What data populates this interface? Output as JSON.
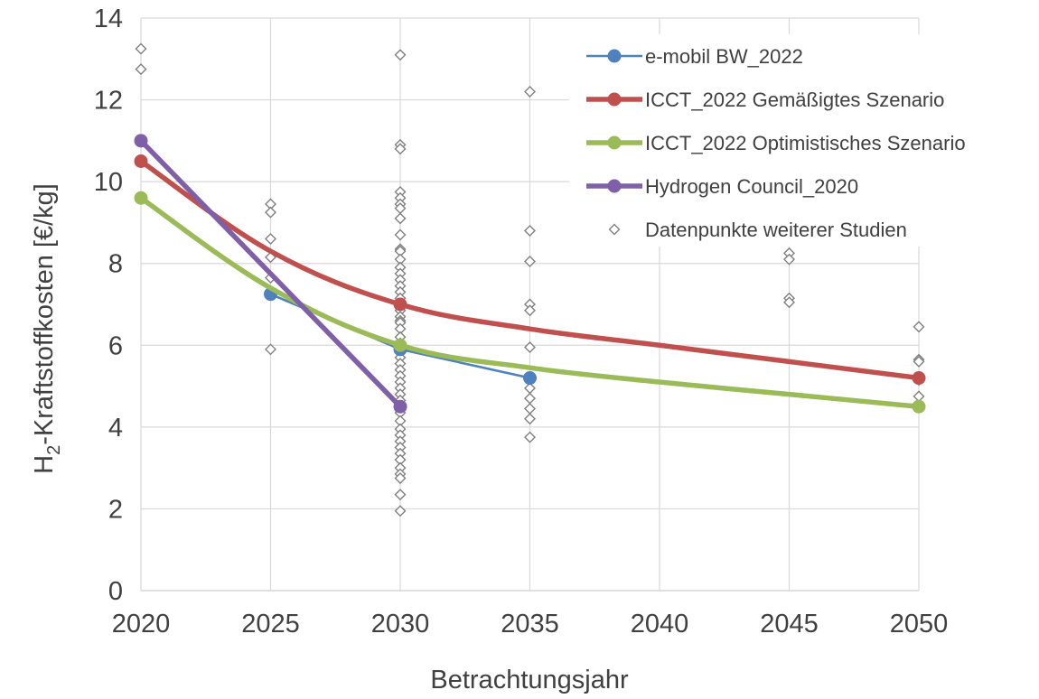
{
  "chart_data": {
    "type": "line",
    "title": "",
    "xlabel": "Betrachtungsjahr",
    "ylabel_prefix": "H",
    "ylabel_subscript": "2",
    "ylabel_rest": "-Kraftstoffkosten [€/kg]",
    "xlim": [
      2020,
      2050
    ],
    "ylim": [
      0,
      14
    ],
    "xticks": [
      "2020",
      "2025",
      "2030",
      "2035",
      "2040",
      "2045",
      "2050"
    ],
    "yticks": [
      "0",
      "2",
      "4",
      "6",
      "8",
      "10",
      "12",
      "14"
    ],
    "grid": "vertical and horizontal",
    "legend_position": "top-right",
    "series": [
      {
        "name": "e-mobil BW_2022",
        "color": "#4e81bd",
        "style": "line-with-markers",
        "points": [
          [
            2025,
            7.25
          ],
          [
            2030,
            5.9
          ],
          [
            2035,
            5.2
          ]
        ]
      },
      {
        "name": "ICCT_2022 Gemäßigtes Szenario",
        "color": "#c0504d",
        "style": "smooth-line",
        "points": [
          [
            2020,
            10.5
          ],
          [
            2025,
            8.3
          ],
          [
            2030,
            7.0
          ],
          [
            2035,
            6.4
          ],
          [
            2040,
            6.0
          ],
          [
            2045,
            5.6
          ],
          [
            2050,
            5.2
          ]
        ],
        "markers_at": [
          2020,
          2030,
          2050
        ]
      },
      {
        "name": "ICCT_2022 Optimistisches Szenario",
        "color": "#9bbb59",
        "style": "smooth-line",
        "points": [
          [
            2020,
            9.6
          ],
          [
            2025,
            7.4
          ],
          [
            2030,
            6.0
          ],
          [
            2035,
            5.45
          ],
          [
            2040,
            5.1
          ],
          [
            2045,
            4.8
          ],
          [
            2050,
            4.5
          ]
        ],
        "markers_at": [
          2020,
          2030,
          2050
        ]
      },
      {
        "name": "Hydrogen Council_2020",
        "color": "#7f5fa8",
        "style": "line-with-markers",
        "points": [
          [
            2020,
            11.0
          ],
          [
            2030,
            4.5
          ]
        ]
      },
      {
        "name": "Datenpunkte weiterer Studien",
        "color": "#7f7f7f",
        "style": "diamond-markers",
        "points": [
          [
            2020,
            13.25
          ],
          [
            2020,
            12.75
          ],
          [
            2020,
            11.0
          ],
          [
            2025,
            9.45
          ],
          [
            2025,
            9.25
          ],
          [
            2025,
            8.6
          ],
          [
            2025,
            8.15
          ],
          [
            2025,
            7.65
          ],
          [
            2025,
            5.9
          ],
          [
            2030,
            13.1
          ],
          [
            2030,
            10.9
          ],
          [
            2030,
            10.8
          ],
          [
            2030,
            9.75
          ],
          [
            2030,
            9.6
          ],
          [
            2030,
            9.45
          ],
          [
            2030,
            9.35
          ],
          [
            2030,
            9.1
          ],
          [
            2030,
            8.7
          ],
          [
            2030,
            8.35
          ],
          [
            2030,
            8.3
          ],
          [
            2030,
            8.1
          ],
          [
            2030,
            7.9
          ],
          [
            2030,
            7.75
          ],
          [
            2030,
            7.6
          ],
          [
            2030,
            7.45
          ],
          [
            2030,
            7.3
          ],
          [
            2030,
            7.15
          ],
          [
            2030,
            7.0
          ],
          [
            2030,
            6.85
          ],
          [
            2030,
            6.7
          ],
          [
            2030,
            6.6
          ],
          [
            2030,
            6.55
          ],
          [
            2030,
            6.4
          ],
          [
            2030,
            6.2
          ],
          [
            2030,
            6.05
          ],
          [
            2030,
            5.85
          ],
          [
            2030,
            5.7
          ],
          [
            2030,
            5.55
          ],
          [
            2030,
            5.4
          ],
          [
            2030,
            5.25
          ],
          [
            2030,
            5.1
          ],
          [
            2030,
            4.95
          ],
          [
            2030,
            4.8
          ],
          [
            2030,
            4.65
          ],
          [
            2030,
            4.5
          ],
          [
            2030,
            4.35
          ],
          [
            2030,
            4.15
          ],
          [
            2030,
            3.95
          ],
          [
            2030,
            3.8
          ],
          [
            2030,
            3.65
          ],
          [
            2030,
            3.5
          ],
          [
            2030,
            3.35
          ],
          [
            2030,
            3.2
          ],
          [
            2030,
            3.0
          ],
          [
            2030,
            2.85
          ],
          [
            2030,
            2.75
          ],
          [
            2030,
            2.35
          ],
          [
            2030,
            1.95
          ],
          [
            2035,
            12.2
          ],
          [
            2035,
            8.8
          ],
          [
            2035,
            8.05
          ],
          [
            2035,
            7.0
          ],
          [
            2035,
            6.85
          ],
          [
            2035,
            5.95
          ],
          [
            2035,
            5.2
          ],
          [
            2035,
            4.95
          ],
          [
            2035,
            4.7
          ],
          [
            2035,
            4.45
          ],
          [
            2035,
            4.2
          ],
          [
            2035,
            3.75
          ],
          [
            2045,
            8.25
          ],
          [
            2045,
            8.1
          ],
          [
            2045,
            7.15
          ],
          [
            2045,
            7.05
          ],
          [
            2050,
            6.45
          ],
          [
            2050,
            5.65
          ],
          [
            2050,
            5.6
          ],
          [
            2050,
            5.15
          ],
          [
            2050,
            4.75
          ]
        ]
      }
    ]
  }
}
